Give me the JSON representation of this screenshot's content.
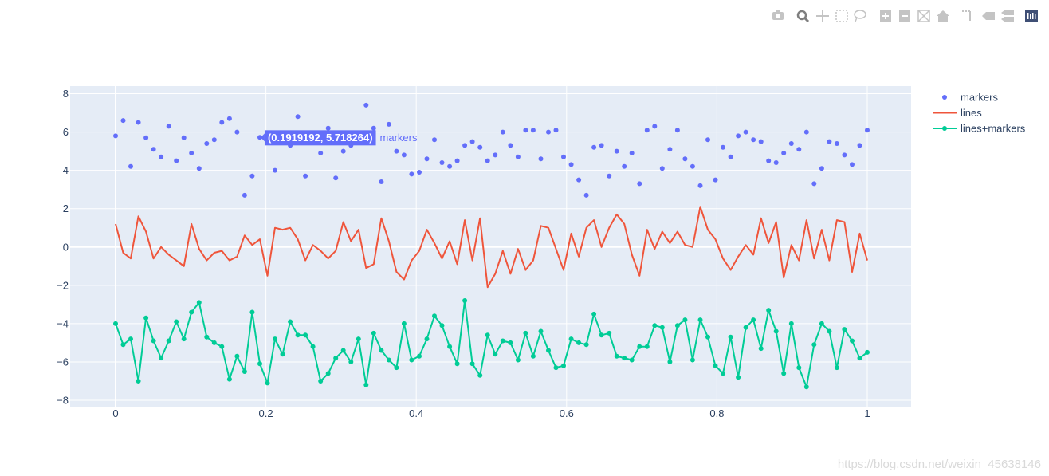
{
  "modebar": {
    "icons": [
      "camera-icon",
      "zoom-icon",
      "pan-icon",
      "box-select-icon",
      "lasso-icon",
      "zoom-in-icon",
      "zoom-out-icon",
      "autoscale-icon",
      "reset-axes-icon",
      "spike-lines-icon",
      "hover-closest-icon",
      "hover-compare-icon",
      "plotly-logo-icon"
    ],
    "color": "#c4c4c4"
  },
  "watermark": "https://blog.csdn.net/weixin_45638146",
  "hover": {
    "label": "(0.1919192, 5.718264)",
    "trace": "markers",
    "x": 0.1919192,
    "y": 5.718264,
    "bg": "#636efa"
  },
  "chart_data": {
    "type": "scatter",
    "title": "",
    "xlabel": "",
    "ylabel": "",
    "xlim": [
      -0.06,
      1.06
    ],
    "ylim": [
      -8.3,
      8.5
    ],
    "xticks": [
      0,
      0.2,
      0.4,
      0.6,
      0.8,
      1
    ],
    "xtick_labels": [
      "0",
      "0.2",
      "0.4",
      "0.6",
      "0.8",
      "1"
    ],
    "yticks": [
      -8,
      -6,
      -4,
      -2,
      0,
      2,
      4,
      6,
      8
    ],
    "ytick_labels": [
      "−8",
      "−6",
      "−4",
      "−2",
      "0",
      "2",
      "4",
      "6",
      "8"
    ],
    "plot_bg": "#e5ecf6",
    "grid": true,
    "legend_position": "top-right",
    "x": [
      0,
      0.0101,
      0.0202,
      0.0303,
      0.0404,
      0.0505,
      0.0606,
      0.0707,
      0.0808,
      0.0909,
      0.101,
      0.1111,
      0.1212,
      0.1313,
      0.1414,
      0.1515,
      0.1616,
      0.1717,
      0.1818,
      0.1919,
      0.202,
      0.2121,
      0.2222,
      0.2323,
      0.2424,
      0.2525,
      0.2626,
      0.2727,
      0.2828,
      0.2929,
      0.303,
      0.3131,
      0.3232,
      0.3333,
      0.3434,
      0.3535,
      0.3636,
      0.3737,
      0.3838,
      0.3939,
      0.404,
      0.4141,
      0.4242,
      0.4343,
      0.4444,
      0.4545,
      0.4646,
      0.4747,
      0.4848,
      0.4949,
      0.5051,
      0.5152,
      0.5253,
      0.5354,
      0.5455,
      0.5556,
      0.5657,
      0.5758,
      0.5859,
      0.596,
      0.6061,
      0.6162,
      0.6263,
      0.6364,
      0.6465,
      0.6566,
      0.6667,
      0.6768,
      0.6869,
      0.697,
      0.7071,
      0.7172,
      0.7273,
      0.7374,
      0.7475,
      0.7576,
      0.7677,
      0.7778,
      0.7879,
      0.798,
      0.8081,
      0.8182,
      0.8283,
      0.8384,
      0.8485,
      0.8586,
      0.8687,
      0.8788,
      0.8889,
      0.899,
      0.9091,
      0.9192,
      0.9293,
      0.9394,
      0.9495,
      0.9596,
      0.9697,
      0.9798,
      0.9899,
      1
    ],
    "series": [
      {
        "name": "markers",
        "mode": "markers",
        "color": "#636efa",
        "values": [
          5.8,
          6.6,
          4.2,
          6.5,
          5.7,
          5.1,
          4.7,
          6.3,
          4.5,
          5.7,
          4.9,
          4.1,
          5.4,
          5.6,
          6.5,
          6.7,
          6.0,
          2.7,
          3.7,
          5.72,
          5.9,
          4.0,
          5.7,
          5.3,
          6.8,
          3.7,
          5.5,
          4.9,
          6.2,
          3.6,
          5.0,
          5.3,
          5.9,
          7.4,
          6.2,
          3.4,
          6.4,
          5.0,
          4.8,
          3.8,
          3.9,
          4.6,
          5.6,
          4.4,
          4.2,
          4.5,
          5.3,
          5.5,
          5.2,
          4.5,
          4.8,
          6.0,
          5.3,
          4.7,
          6.1,
          6.1,
          4.6,
          6.0,
          6.1,
          4.7,
          4.3,
          3.5,
          2.7,
          5.2,
          5.3,
          3.7,
          5.0,
          4.2,
          4.9,
          3.3,
          6.1,
          6.3,
          4.1,
          5.1,
          6.1,
          4.6,
          4.2,
          3.2,
          5.6,
          3.5,
          5.2,
          4.7,
          5.8,
          6.0,
          5.6,
          5.5,
          4.5,
          4.4,
          4.9,
          5.4,
          5.1,
          6.0,
          3.3,
          4.1,
          5.5,
          5.4,
          4.8,
          4.3,
          5.3,
          6.1
        ]
      },
      {
        "name": "lines",
        "mode": "lines",
        "color": "#ef553b",
        "values": [
          1.2,
          -0.3,
          -0.6,
          1.6,
          0.8,
          -0.6,
          0.0,
          -0.4,
          -0.7,
          -1.0,
          1.2,
          -0.1,
          -0.7,
          -0.3,
          -0.2,
          -0.7,
          -0.5,
          0.6,
          0.1,
          0.4,
          -1.5,
          1.0,
          0.9,
          1.0,
          0.4,
          -0.7,
          0.1,
          -0.2,
          -0.6,
          -0.2,
          1.3,
          0.3,
          0.9,
          -1.1,
          -0.9,
          1.5,
          0.3,
          -1.3,
          -1.7,
          -0.7,
          -0.2,
          0.9,
          0.2,
          -0.6,
          0.3,
          -0.9,
          1.4,
          -0.7,
          1.5,
          -2.1,
          -1.4,
          -0.2,
          -1.4,
          -0.1,
          -1.2,
          -0.7,
          1.1,
          1.0,
          -0.1,
          -1.2,
          0.7,
          -0.5,
          1.0,
          1.4,
          0.0,
          1.0,
          1.7,
          1.2,
          -0.4,
          -1.5,
          0.9,
          -0.1,
          0.8,
          0.2,
          0.8,
          0.1,
          0.0,
          2.1,
          0.9,
          0.4,
          -0.6,
          -1.2,
          -0.5,
          0.1,
          -0.4,
          1.5,
          0.2,
          1.3,
          -1.6,
          0.1,
          -0.7,
          1.4,
          -0.6,
          0.9,
          -0.7,
          1.4,
          1.3,
          -1.3,
          0.7,
          -0.7
        ]
      },
      {
        "name": "lines+markers",
        "mode": "lines+markers",
        "color": "#00cc96",
        "values": [
          -4.0,
          -5.1,
          -4.8,
          -7.0,
          -3.7,
          -4.9,
          -5.8,
          -4.9,
          -3.9,
          -4.8,
          -3.4,
          -2.9,
          -4.7,
          -5.0,
          -5.2,
          -6.9,
          -5.7,
          -6.5,
          -3.4,
          -6.1,
          -7.1,
          -4.8,
          -5.6,
          -3.9,
          -4.6,
          -4.6,
          -5.2,
          -7.0,
          -6.6,
          -5.8,
          -5.4,
          -6.0,
          -4.8,
          -7.2,
          -4.5,
          -5.4,
          -5.9,
          -6.3,
          -4.0,
          -5.9,
          -5.7,
          -4.8,
          -3.6,
          -4.1,
          -5.2,
          -6.1,
          -2.8,
          -6.1,
          -6.7,
          -4.6,
          -5.6,
          -4.9,
          -5.0,
          -5.9,
          -4.5,
          -5.7,
          -4.4,
          -5.4,
          -6.3,
          -6.2,
          -4.8,
          -5.0,
          -5.1,
          -3.5,
          -4.6,
          -4.5,
          -5.7,
          -5.8,
          -5.9,
          -5.2,
          -5.2,
          -4.1,
          -4.2,
          -6.0,
          -4.1,
          -3.8,
          -5.9,
          -3.8,
          -4.7,
          -6.2,
          -6.6,
          -4.7,
          -6.8,
          -4.2,
          -3.8,
          -5.3,
          -3.3,
          -4.4,
          -6.6,
          -4.0,
          -6.3,
          -7.3,
          -5.1,
          -4.0,
          -4.4,
          -6.3,
          -4.3,
          -4.9,
          -5.8,
          -5.5
        ]
      }
    ]
  }
}
